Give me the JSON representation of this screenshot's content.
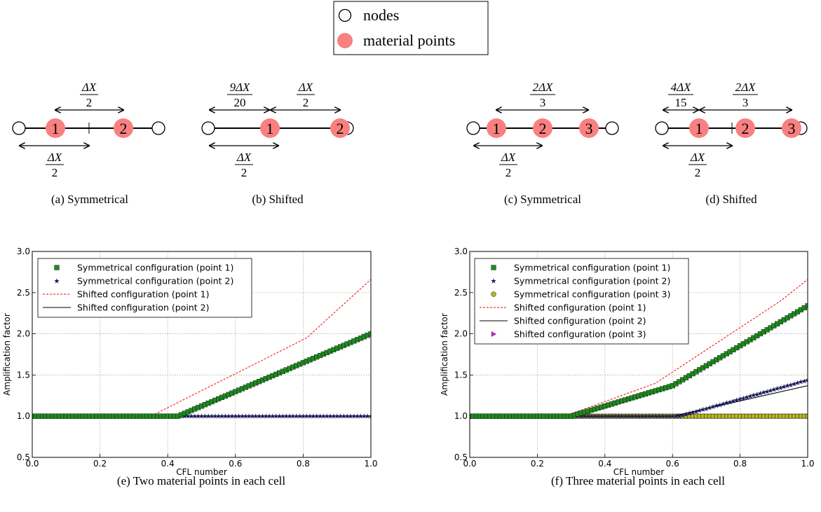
{
  "legend": {
    "nodes": "nodes",
    "material_points": "material points"
  },
  "colors": {
    "material_point": "#f98080",
    "symmetrical_p1": "#1f8a1f",
    "symmetrical_p2": "#1a1a5a",
    "symmetrical_p3": "#b8b820",
    "shifted_p1": "#ff0000",
    "shifted_p2": "#000000",
    "shifted_p3": "#cc22cc"
  },
  "diagrams": {
    "a": {
      "caption": "(a) Symmetrical",
      "points": [
        "1",
        "2"
      ],
      "top_fraction": {
        "num": "ΔX",
        "den": "2"
      },
      "bottom_fraction": {
        "num": "ΔX",
        "den": "2"
      }
    },
    "b": {
      "caption": "(b) Shifted",
      "points": [
        "1",
        "2"
      ],
      "top_left_fraction": {
        "num": "9ΔX",
        "den": "20"
      },
      "top_right_fraction": {
        "num": "ΔX",
        "den": "2"
      },
      "bottom_fraction": {
        "num": "ΔX",
        "den": "2"
      }
    },
    "c": {
      "caption": "(c) Symmetrical",
      "points": [
        "1",
        "2",
        "3"
      ],
      "top_fraction": {
        "num": "2ΔX",
        "den": "3"
      },
      "bottom_fraction": {
        "num": "ΔX",
        "den": "2"
      }
    },
    "d": {
      "caption": "(d) Shifted",
      "points": [
        "1",
        "2",
        "3"
      ],
      "top_left_fraction": {
        "num": "4ΔX",
        "den": "15"
      },
      "top_right_fraction": {
        "num": "2ΔX",
        "den": "3"
      },
      "bottom_fraction": {
        "num": "ΔX",
        "den": "2"
      }
    }
  },
  "chart_data": [
    {
      "type": "line",
      "caption": "(e) Two material points in each cell",
      "xlabel": "CFL number",
      "ylabel": "Amplification factor",
      "xlim": [
        0.0,
        1.0
      ],
      "ylim": [
        0.5,
        3.0
      ],
      "xticks": [
        "0.0",
        "0.2",
        "0.4",
        "0.6",
        "0.8",
        "1.0"
      ],
      "yticks": [
        "0.5",
        "1.0",
        "1.5",
        "2.0",
        "2.5",
        "3.0"
      ],
      "grid": true,
      "legend_position": "top-left",
      "series": [
        {
          "name": "Symmetrical configuration (point 1)",
          "marker": "square",
          "x": [
            0.0,
            0.43,
            1.0
          ],
          "y": [
            1.0,
            1.0,
            2.0
          ]
        },
        {
          "name": "Symmetrical configuration (point 2)",
          "marker": "star",
          "x": [
            0.0,
            1.0
          ],
          "y": [
            1.0,
            1.0
          ]
        },
        {
          "name": "Shifted configuration (point 1)",
          "marker": "dashed",
          "x": [
            0.0,
            0.35,
            0.81,
            1.0
          ],
          "y": [
            1.0,
            1.0,
            1.95,
            2.66
          ]
        },
        {
          "name": "Shifted configuration (point 2)",
          "marker": "line",
          "x": [
            0.0,
            1.0
          ],
          "y": [
            1.0,
            1.0
          ]
        }
      ]
    },
    {
      "type": "line",
      "caption": "(f) Three material points in each cell",
      "xlabel": "CFL number",
      "ylabel": "Amplification factor",
      "xlim": [
        0.0,
        1.0
      ],
      "ylim": [
        0.5,
        3.0
      ],
      "xticks": [
        "0.0",
        "0.2",
        "0.4",
        "0.6",
        "0.8",
        "1.0"
      ],
      "yticks": [
        "0.5",
        "1.0",
        "1.5",
        "2.0",
        "2.5",
        "3.0"
      ],
      "grid": true,
      "legend_position": "top-left",
      "series": [
        {
          "name": "Symmetrical configuration (point 1)",
          "marker": "square",
          "x": [
            0.0,
            0.3,
            0.6,
            1.0
          ],
          "y": [
            1.0,
            1.0,
            1.37,
            2.34
          ]
        },
        {
          "name": "Symmetrical configuration (point 2)",
          "marker": "star",
          "x": [
            0.0,
            0.62,
            1.0
          ],
          "y": [
            1.0,
            1.0,
            1.44
          ]
        },
        {
          "name": "Symmetrical configuration (point 3)",
          "marker": "circle",
          "x": [
            0.0,
            1.0
          ],
          "y": [
            1.0,
            1.0
          ]
        },
        {
          "name": "Shifted configuration (point 1)",
          "marker": "dashed",
          "x": [
            0.0,
            0.28,
            0.55,
            0.92,
            1.0
          ],
          "y": [
            1.0,
            1.0,
            1.4,
            2.4,
            2.66
          ]
        },
        {
          "name": "Shifted configuration (point 2)",
          "marker": "line",
          "x": [
            0.0,
            0.6,
            1.0
          ],
          "y": [
            1.0,
            1.0,
            1.37
          ]
        },
        {
          "name": "Shifted configuration (point 3)",
          "marker": "triangle",
          "x": [
            0.0,
            1.0
          ],
          "y": [
            1.0,
            1.0
          ]
        }
      ]
    }
  ]
}
